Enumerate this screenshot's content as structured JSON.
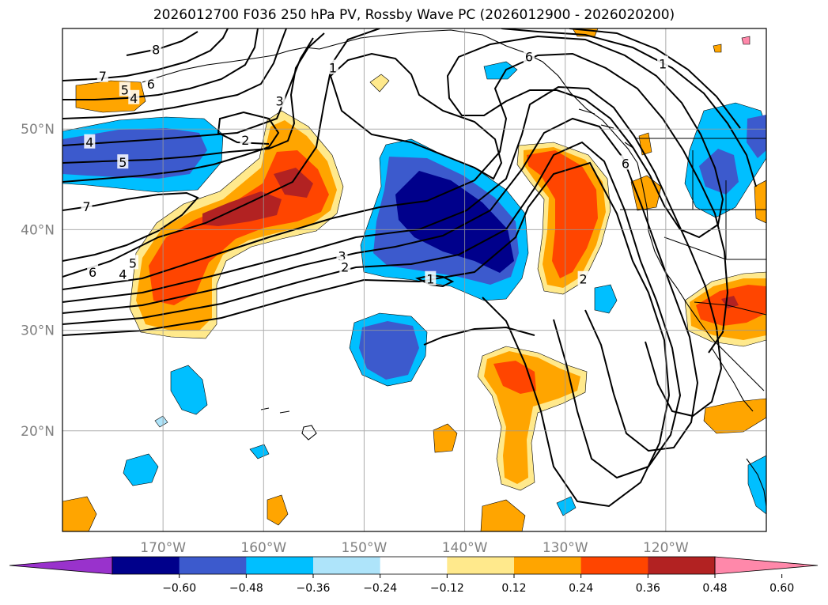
{
  "title": "2026012700 F036 250 hPa PV, Rossby Wave PC (2026012900 - 2026020200)",
  "map": {
    "lon_range": [
      -180,
      -110
    ],
    "lat_range": [
      10,
      60
    ],
    "lat_ticks": [
      {
        "value": 20,
        "label": "20°N"
      },
      {
        "value": 30,
        "label": "30°N"
      },
      {
        "value": 40,
        "label": "40°N"
      },
      {
        "value": 50,
        "label": "50°N"
      }
    ],
    "lon_ticks": [
      {
        "value": -170,
        "label": "170°W"
      },
      {
        "value": -160,
        "label": "160°W"
      },
      {
        "value": -150,
        "label": "150°W"
      },
      {
        "value": -140,
        "label": "140°W"
      },
      {
        "value": -130,
        "label": "130°W"
      },
      {
        "value": -120,
        "label": "120°W"
      }
    ],
    "grid": true
  },
  "colorbar": {
    "colors": [
      "#9932cc",
      "#00008b",
      "#3c5acd",
      "#00bfff",
      "#aee4fa",
      "#ffffff",
      "#ffe98c",
      "#ffa500",
      "#ff4500",
      "#b22222",
      "#ff88aa"
    ],
    "tick_labels": [
      "−0.60",
      "−0.48",
      "−0.36",
      "−0.24",
      "−0.12",
      "0.12",
      "0.24",
      "0.36",
      "0.48",
      "0.60"
    ],
    "extend": "both"
  },
  "contour_labels": [
    {
      "text": "8",
      "lon": -170.7,
      "lat": 57.9
    },
    {
      "text": "7",
      "lon": -176.0,
      "lat": 55.3
    },
    {
      "text": "6",
      "lon": -171.2,
      "lat": 54.5
    },
    {
      "text": "5",
      "lon": -173.8,
      "lat": 53.9
    },
    {
      "text": "4",
      "lon": -172.9,
      "lat": 53.1
    },
    {
      "text": "3",
      "lon": -158.4,
      "lat": 52.8
    },
    {
      "text": "2",
      "lon": -161.8,
      "lat": 48.9
    },
    {
      "text": "1",
      "lon": -153.1,
      "lat": 56.1
    },
    {
      "text": "4",
      "lon": -177.3,
      "lat": 48.7
    },
    {
      "text": "5",
      "lon": -174.0,
      "lat": 46.7
    },
    {
      "text": "7",
      "lon": -177.6,
      "lat": 42.3
    },
    {
      "text": "6",
      "lon": -177.0,
      "lat": 35.8
    },
    {
      "text": "5",
      "lon": -173.0,
      "lat": 36.7
    },
    {
      "text": "4",
      "lon": -174.0,
      "lat": 35.6
    },
    {
      "text": "3",
      "lon": -152.2,
      "lat": 37.4
    },
    {
      "text": "2",
      "lon": -151.9,
      "lat": 36.3
    },
    {
      "text": "1",
      "lon": -143.4,
      "lat": 35.1
    },
    {
      "text": "2",
      "lon": -128.2,
      "lat": 35.1
    },
    {
      "text": "1",
      "lon": -120.3,
      "lat": 56.5
    },
    {
      "text": "6",
      "lon": -133.6,
      "lat": 57.2
    },
    {
      "text": "6",
      "lon": -124.0,
      "lat": 46.6
    }
  ]
}
